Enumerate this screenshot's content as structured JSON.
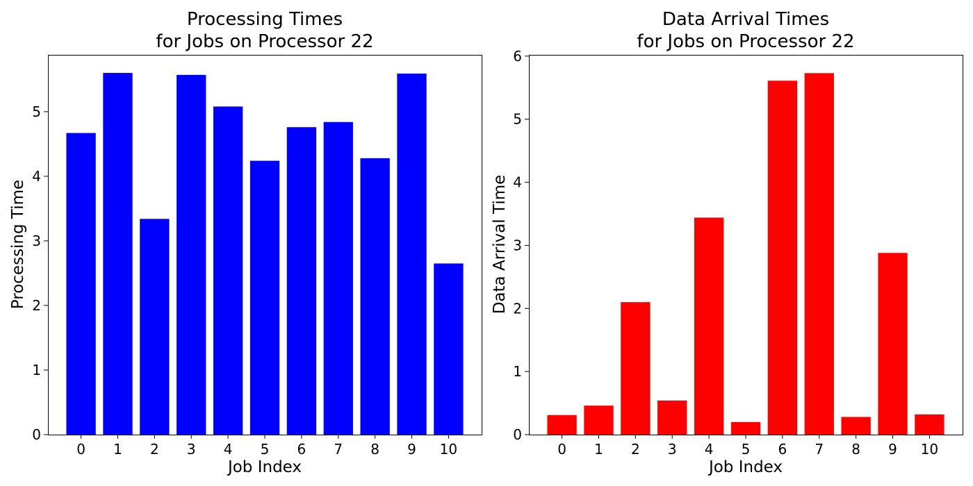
{
  "chart_data": [
    {
      "type": "bar",
      "title_lines": [
        "Processing Times",
        "for Jobs on Processor 22"
      ],
      "xlabel": "Job Index",
      "ylabel": "Processing Time",
      "categories": [
        "0",
        "1",
        "2",
        "3",
        "4",
        "5",
        "6",
        "7",
        "8",
        "9",
        "10"
      ],
      "values": [
        4.67,
        5.6,
        3.34,
        5.57,
        5.08,
        4.24,
        4.76,
        4.84,
        4.28,
        5.59,
        2.65
      ],
      "ylim": [
        0,
        5.88
      ],
      "yticks": [
        0,
        1,
        2,
        3,
        4,
        5
      ],
      "color": "#0000ff",
      "grid": false
    },
    {
      "type": "bar",
      "title_lines": [
        "Data Arrival Times",
        "for Jobs on Processor 22"
      ],
      "xlabel": "Job Index",
      "ylabel": "Data Arrival Time",
      "categories": [
        "0",
        "1",
        "2",
        "3",
        "4",
        "5",
        "6",
        "7",
        "8",
        "9",
        "10"
      ],
      "values": [
        0.31,
        0.46,
        2.1,
        0.54,
        3.44,
        0.2,
        5.61,
        5.73,
        0.28,
        2.88,
        0.32
      ],
      "ylim": [
        0,
        6.02
      ],
      "yticks": [
        0,
        1,
        2,
        3,
        4,
        5,
        6
      ],
      "color": "#ff0000",
      "grid": false
    }
  ]
}
